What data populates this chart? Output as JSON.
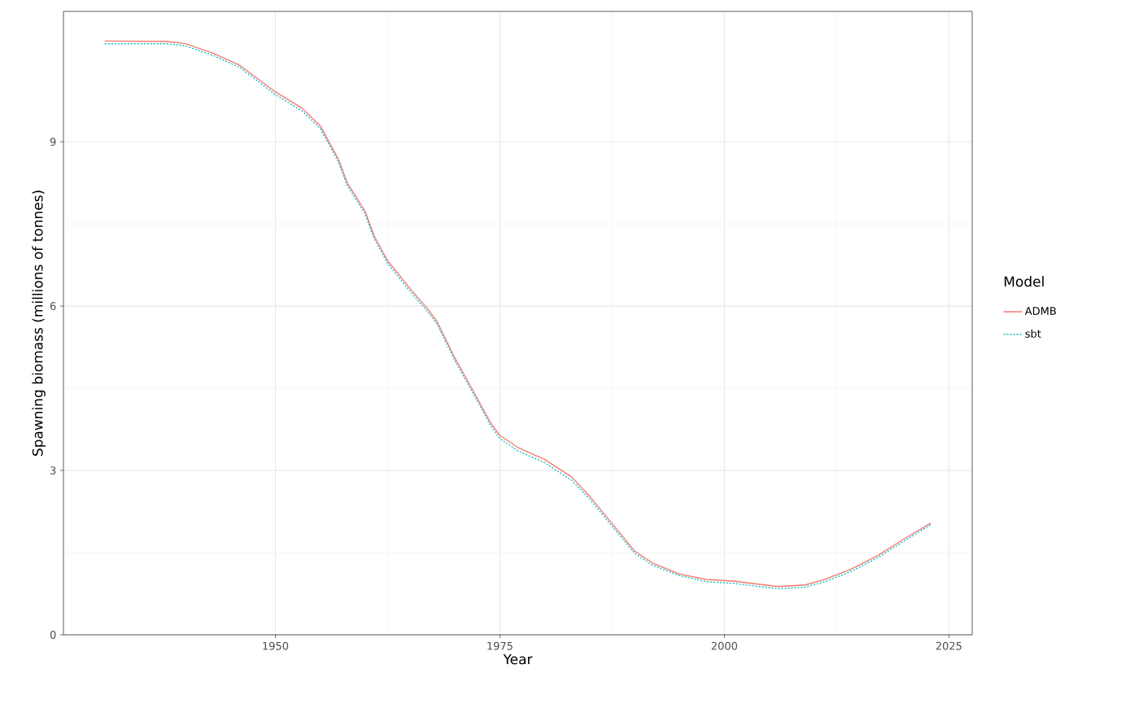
{
  "chart_data": {
    "type": "line",
    "xlabel": "Year",
    "ylabel": "Spawning biomass (millions of tonnes)",
    "legend_title": "Model",
    "legend": "right",
    "grid": true,
    "xlim": [
      1926.4,
      2027.6
    ],
    "ylim": [
      0,
      11.38
    ],
    "xticks": [
      1950,
      1975,
      2000,
      2025
    ],
    "yticks": [
      0,
      3,
      6,
      9
    ],
    "x": [
      1931,
      1938,
      1940,
      1943,
      1946,
      1950,
      1953,
      1955,
      1957,
      1958,
      1960,
      1961,
      1962.5,
      1965,
      1967,
      1968,
      1970,
      1972,
      1974,
      1975,
      1977,
      1980,
      1983,
      1985,
      1988,
      1990,
      1992,
      1995,
      1998,
      2001,
      2003,
      2006,
      2009,
      2011,
      2014,
      2017,
      2020,
      2023
    ],
    "series": [
      {
        "name": "ADMB",
        "color": "#f8766d",
        "line_style": "solid",
        "values": [
          10.84,
          10.83,
          10.79,
          10.62,
          10.4,
          9.91,
          9.61,
          9.29,
          8.69,
          8.25,
          7.73,
          7.28,
          6.83,
          6.32,
          5.94,
          5.72,
          5.05,
          4.46,
          3.86,
          3.64,
          3.42,
          3.2,
          2.88,
          2.53,
          1.93,
          1.53,
          1.31,
          1.11,
          1.01,
          0.98,
          0.94,
          0.88,
          0.91,
          1.0,
          1.19,
          1.44,
          1.75,
          2.04
        ]
      },
      {
        "name": "sbt",
        "color": "#00bfc4",
        "line_style": "dotted",
        "values": [
          10.79,
          10.79,
          10.75,
          10.58,
          10.36,
          9.86,
          9.56,
          9.24,
          8.64,
          8.2,
          7.68,
          7.23,
          6.78,
          6.27,
          5.89,
          5.67,
          5.0,
          4.41,
          3.81,
          3.58,
          3.36,
          3.14,
          2.82,
          2.48,
          1.88,
          1.49,
          1.27,
          1.08,
          0.97,
          0.94,
          0.9,
          0.84,
          0.87,
          0.96,
          1.15,
          1.4,
          1.71,
          2.01
        ]
      }
    ]
  }
}
